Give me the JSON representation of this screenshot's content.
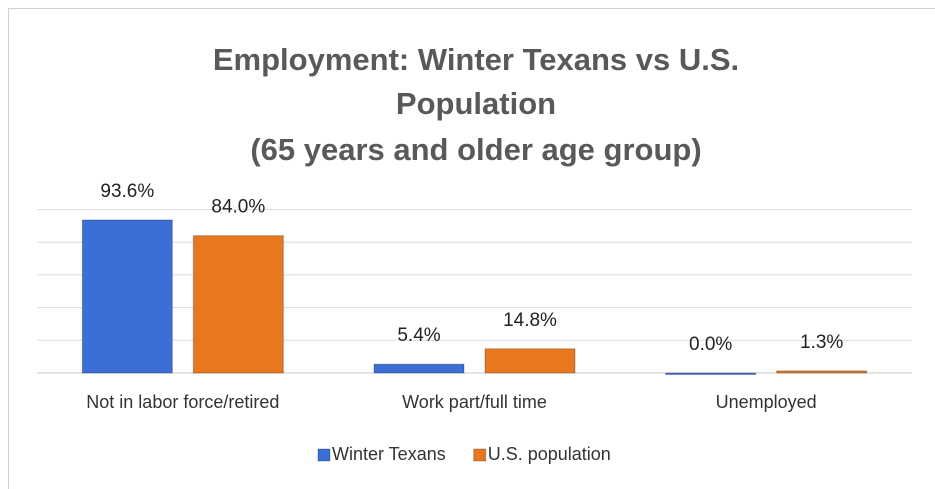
{
  "chart_data": {
    "type": "bar",
    "title": [
      "Employment:  Winter Texans vs U.S.",
      "Population",
      "(65 years and older age group)"
    ],
    "categories": [
      "Not in labor force/retired",
      "Work part/full time",
      "Unemployed"
    ],
    "series": [
      {
        "name": "Winter Texans",
        "color": "#3b6fd6",
        "values": [
          93.6,
          5.4,
          0.0
        ],
        "value_labels": [
          "93.6%",
          "5.4%",
          "0.0%"
        ]
      },
      {
        "name": "U.S. population",
        "color": "#e8771e",
        "values": [
          84.0,
          14.8,
          1.3
        ],
        "value_labels": [
          "84.0%",
          "14.8%",
          "1.3%"
        ]
      }
    ],
    "ylim": [
      0,
      100
    ],
    "yticks": [
      0,
      20,
      40,
      60,
      80,
      100
    ],
    "grid": true,
    "legend": "bottom"
  }
}
